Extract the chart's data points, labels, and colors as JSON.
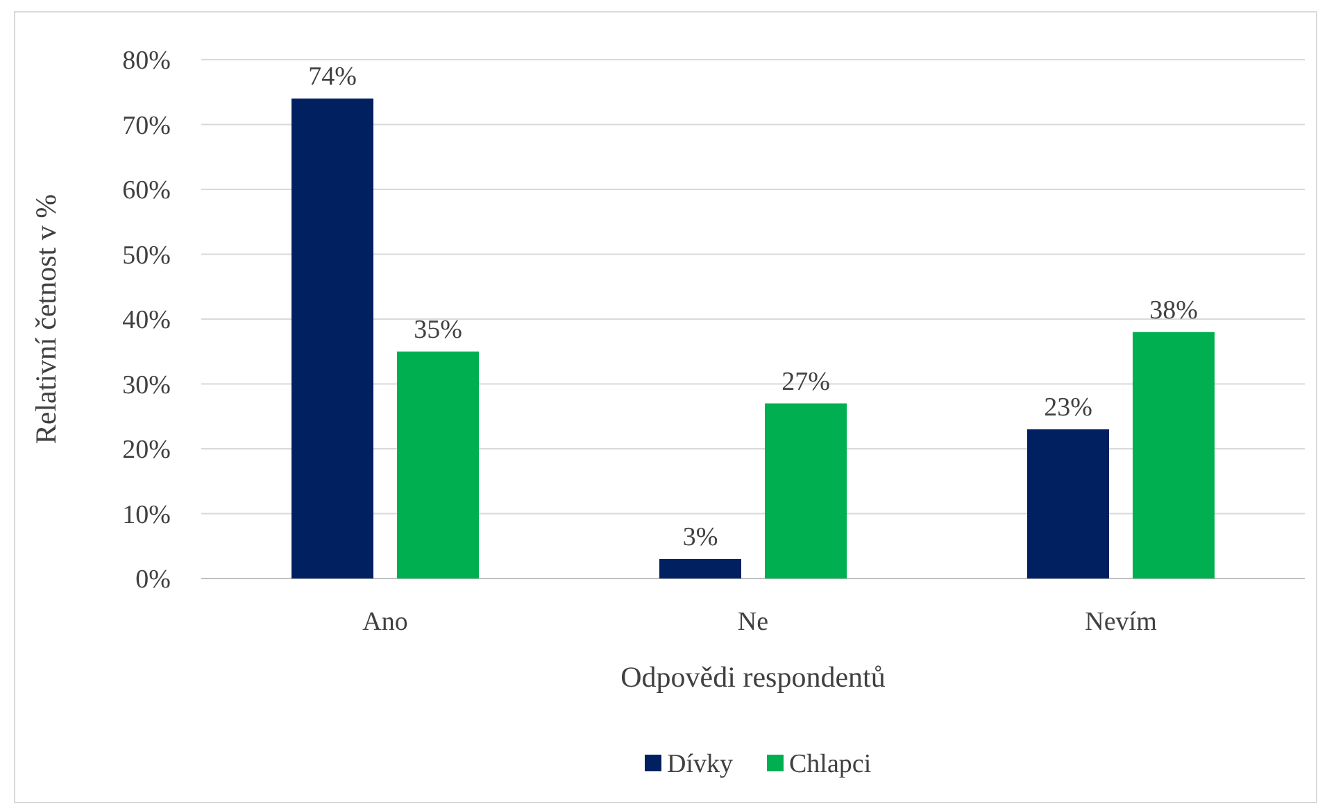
{
  "chart_data": {
    "type": "bar",
    "xlabel": "Odpovědi respondentů",
    "ylabel": "Relativní četnost v %",
    "categories": [
      "Ano",
      "Ne",
      "Nevím"
    ],
    "series": [
      {
        "name": "Dívky",
        "color": "#002060",
        "values": [
          74,
          3,
          23
        ],
        "value_labels": [
          "74%",
          "3%",
          "23%"
        ]
      },
      {
        "name": "Chlapci",
        "color": "#00b050",
        "values": [
          35,
          27,
          38
        ],
        "value_labels": [
          "35%",
          "27%",
          "38%"
        ]
      }
    ],
    "ylim": [
      0,
      80
    ],
    "yticks": [
      {
        "value": 0,
        "label": "0%"
      },
      {
        "value": 10,
        "label": "10%"
      },
      {
        "value": 20,
        "label": "20%"
      },
      {
        "value": 30,
        "label": "30%"
      },
      {
        "value": 40,
        "label": "40%"
      },
      {
        "value": 50,
        "label": "50%"
      },
      {
        "value": 60,
        "label": "60%"
      },
      {
        "value": 70,
        "label": "70%"
      },
      {
        "value": 80,
        "label": "80%"
      }
    ],
    "grid": "y",
    "legend": "bottom"
  }
}
